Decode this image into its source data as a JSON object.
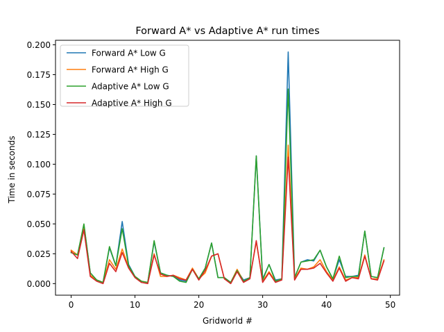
{
  "chart_data": {
    "type": "line",
    "title": "Forward A* vs Adaptive A* run times",
    "xlabel": "Gridworld #",
    "ylabel": "Time in seconds",
    "xlim": [
      -2.45,
      51.45
    ],
    "ylim": [
      -0.0097,
      0.2038
    ],
    "xticks": [
      0,
      10,
      20,
      30,
      40,
      50
    ],
    "yticks": [
      0.0,
      0.025,
      0.05,
      0.075,
      0.1,
      0.125,
      0.15,
      0.175,
      0.2
    ],
    "ytick_labels": [
      "0.000",
      "0.025",
      "0.050",
      "0.075",
      "0.100",
      "0.125",
      "0.150",
      "0.175",
      "0.200"
    ],
    "legend_position": "upper-left",
    "grid": false,
    "x": [
      0,
      1,
      2,
      3,
      4,
      5,
      6,
      7,
      8,
      9,
      10,
      11,
      12,
      13,
      14,
      15,
      16,
      17,
      18,
      19,
      20,
      21,
      22,
      23,
      24,
      25,
      26,
      27,
      28,
      29,
      30,
      31,
      32,
      33,
      34,
      35,
      36,
      37,
      38,
      39,
      40,
      41,
      42,
      43,
      44,
      45,
      46,
      47,
      48,
      49
    ],
    "series": [
      {
        "name": "Forward A* Low G",
        "color": "#1f77b4",
        "values": [
          0.026,
          0.024,
          0.049,
          0.009,
          0.003,
          0.001,
          0.03,
          0.015,
          0.052,
          0.016,
          0.006,
          0.002,
          0.001,
          0.035,
          0.009,
          0.007,
          0.006,
          0.003,
          0.002,
          0.012,
          0.004,
          0.013,
          0.034,
          0.005,
          0.005,
          0.001,
          0.011,
          0.003,
          0.005,
          0.107,
          0.004,
          0.016,
          0.003,
          0.004,
          0.194,
          0.005,
          0.018,
          0.02,
          0.019,
          0.028,
          0.014,
          0.004,
          0.02,
          0.006,
          0.006,
          0.007,
          0.044,
          0.006,
          0.005,
          0.03
        ]
      },
      {
        "name": "Forward A* High G",
        "color": "#ff7f0e",
        "values": [
          0.028,
          0.024,
          0.046,
          0.007,
          0.003,
          0.001,
          0.02,
          0.012,
          0.029,
          0.014,
          0.006,
          0.002,
          0.001,
          0.025,
          0.006,
          0.006,
          0.007,
          0.005,
          0.003,
          0.013,
          0.004,
          0.009,
          0.023,
          0.025,
          0.004,
          0.001,
          0.012,
          0.002,
          0.005,
          0.035,
          0.002,
          0.01,
          0.002,
          0.004,
          0.116,
          0.004,
          0.013,
          0.012,
          0.014,
          0.02,
          0.01,
          0.003,
          0.014,
          0.003,
          0.005,
          0.005,
          0.024,
          0.004,
          0.004,
          0.02
        ]
      },
      {
        "name": "Adaptive A* Low G",
        "color": "#2ca02c",
        "values": [
          0.026,
          0.024,
          0.05,
          0.009,
          0.003,
          0.001,
          0.031,
          0.015,
          0.046,
          0.015,
          0.006,
          0.002,
          0.001,
          0.036,
          0.009,
          0.007,
          0.006,
          0.002,
          0.001,
          0.012,
          0.004,
          0.013,
          0.034,
          0.005,
          0.005,
          0.001,
          0.011,
          0.002,
          0.005,
          0.107,
          0.003,
          0.016,
          0.002,
          0.004,
          0.163,
          0.005,
          0.018,
          0.019,
          0.02,
          0.028,
          0.014,
          0.004,
          0.023,
          0.005,
          0.006,
          0.006,
          0.044,
          0.006,
          0.005,
          0.03
        ]
      },
      {
        "name": "Adaptive A* High G",
        "color": "#d62728",
        "values": [
          0.027,
          0.021,
          0.045,
          0.006,
          0.002,
          0.0,
          0.017,
          0.01,
          0.026,
          0.013,
          0.005,
          0.001,
          0.0,
          0.024,
          0.008,
          0.006,
          0.007,
          0.004,
          0.003,
          0.012,
          0.003,
          0.011,
          0.023,
          0.025,
          0.004,
          0.0,
          0.01,
          0.001,
          0.004,
          0.036,
          0.001,
          0.009,
          0.001,
          0.003,
          0.106,
          0.003,
          0.012,
          0.012,
          0.013,
          0.017,
          0.009,
          0.002,
          0.013,
          0.002,
          0.005,
          0.004,
          0.023,
          0.004,
          0.003,
          0.019
        ]
      }
    ]
  }
}
